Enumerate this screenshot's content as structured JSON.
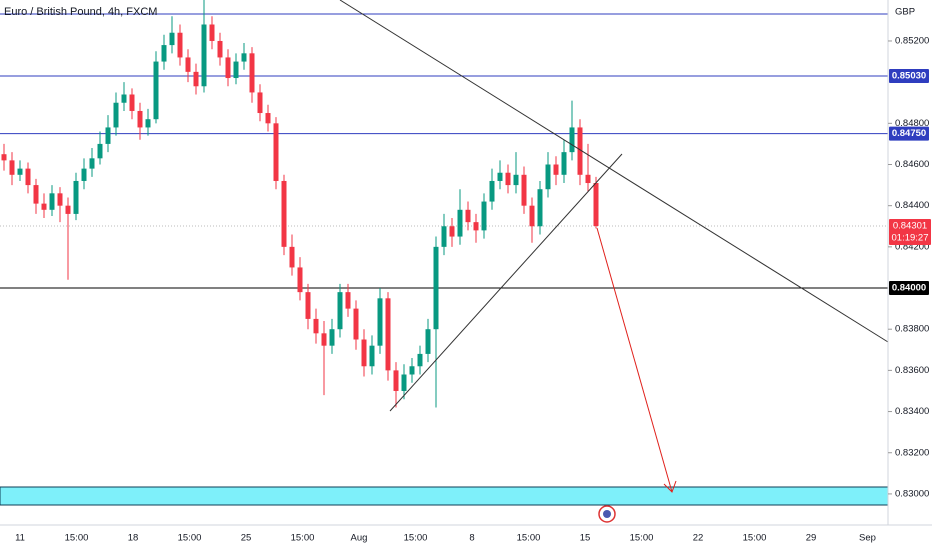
{
  "chart_data": {
    "type": "candlestick",
    "title": "Euro / British Pound, 4h, FXCM",
    "currency": "GBP",
    "up_color": "#089981",
    "down_color": "#f23645",
    "ylim": [
      0.82849,
      0.85399
    ],
    "yticks": [
      {
        "value": 0.852,
        "label": "0.85200"
      },
      {
        "value": 0.848,
        "label": "0.84800"
      },
      {
        "value": 0.846,
        "label": "0.84600"
      },
      {
        "value": 0.844,
        "label": "0.84400"
      },
      {
        "value": 0.842,
        "label": "0.84200"
      },
      {
        "value": 0.838,
        "label": "0.83800"
      },
      {
        "value": 0.836,
        "label": "0.83600"
      },
      {
        "value": 0.834,
        "label": "0.83400"
      },
      {
        "value": 0.832,
        "label": "0.83200"
      },
      {
        "value": 0.83,
        "label": "0.83000"
      }
    ],
    "levels": [
      {
        "value": 0.8503,
        "label": "0.85030",
        "color": "#2f3dbf"
      },
      {
        "value": 0.8475,
        "label": "0.84750",
        "color": "#2f3dbf"
      },
      {
        "value": 0.84,
        "label": "0.84000",
        "color": "#000000"
      }
    ],
    "last_price": {
      "value": 0.84301,
      "label": "0.84301",
      "countdown": "01:19:27",
      "color": "#f23645"
    },
    "xtick_labels": [
      "11",
      "15:00",
      "18",
      "15:00",
      "25",
      "15:00",
      "Aug",
      "15:00",
      "8",
      "15:00",
      "15",
      "15:00",
      "22",
      "15:00",
      "29",
      "Sep"
    ],
    "ohlc": [
      [
        0.8465,
        0.847,
        0.8457,
        0.8462
      ],
      [
        0.8462,
        0.8466,
        0.845,
        0.8455
      ],
      [
        0.8455,
        0.8462,
        0.8452,
        0.8458
      ],
      [
        0.8458,
        0.8461,
        0.8446,
        0.845
      ],
      [
        0.845,
        0.8453,
        0.8436,
        0.8441
      ],
      [
        0.8441,
        0.8446,
        0.8434,
        0.8438
      ],
      [
        0.8438,
        0.845,
        0.8435,
        0.8446
      ],
      [
        0.8446,
        0.8449,
        0.8432,
        0.844
      ],
      [
        0.844,
        0.8444,
        0.8404,
        0.8436
      ],
      [
        0.8436,
        0.8456,
        0.8433,
        0.8452
      ],
      [
        0.8452,
        0.8463,
        0.8448,
        0.8458
      ],
      [
        0.8458,
        0.8468,
        0.8454,
        0.8463
      ],
      [
        0.8463,
        0.8476,
        0.846,
        0.847
      ],
      [
        0.847,
        0.8484,
        0.8466,
        0.8478
      ],
      [
        0.8478,
        0.8495,
        0.8474,
        0.849
      ],
      [
        0.849,
        0.85,
        0.8486,
        0.8494
      ],
      [
        0.8494,
        0.8497,
        0.8482,
        0.8486
      ],
      [
        0.8486,
        0.849,
        0.8472,
        0.8478
      ],
      [
        0.8478,
        0.8487,
        0.8474,
        0.8482
      ],
      [
        0.8482,
        0.8515,
        0.848,
        0.851
      ],
      [
        0.851,
        0.8523,
        0.8506,
        0.8518
      ],
      [
        0.8518,
        0.8532,
        0.8514,
        0.8524
      ],
      [
        0.8524,
        0.8528,
        0.8508,
        0.8512
      ],
      [
        0.8512,
        0.8516,
        0.85,
        0.8505
      ],
      [
        0.8505,
        0.8509,
        0.8494,
        0.8498
      ],
      [
        0.8498,
        0.854,
        0.8495,
        0.8528
      ],
      [
        0.8528,
        0.8532,
        0.8516,
        0.852
      ],
      [
        0.852,
        0.8524,
        0.8508,
        0.8512
      ],
      [
        0.8512,
        0.8516,
        0.8498,
        0.8502
      ],
      [
        0.8502,
        0.8514,
        0.8499,
        0.851
      ],
      [
        0.851,
        0.8519,
        0.8506,
        0.8514
      ],
      [
        0.8514,
        0.8517,
        0.849,
        0.8495
      ],
      [
        0.8495,
        0.8499,
        0.8481,
        0.8485
      ],
      [
        0.8485,
        0.8489,
        0.8476,
        0.848
      ],
      [
        0.848,
        0.8483,
        0.8448,
        0.8452
      ],
      [
        0.8452,
        0.8455,
        0.8416,
        0.842
      ],
      [
        0.842,
        0.8426,
        0.8406,
        0.841
      ],
      [
        0.841,
        0.8415,
        0.8394,
        0.8398
      ],
      [
        0.8398,
        0.8402,
        0.838,
        0.8385
      ],
      [
        0.8385,
        0.839,
        0.8373,
        0.8378
      ],
      [
        0.8378,
        0.8384,
        0.8348,
        0.8372
      ],
      [
        0.8372,
        0.8385,
        0.8368,
        0.838
      ],
      [
        0.838,
        0.8402,
        0.8376,
        0.8398
      ],
      [
        0.8398,
        0.8402,
        0.8386,
        0.839
      ],
      [
        0.839,
        0.8394,
        0.837,
        0.8375
      ],
      [
        0.8375,
        0.838,
        0.8357,
        0.8362
      ],
      [
        0.8362,
        0.8377,
        0.8358,
        0.8372
      ],
      [
        0.8372,
        0.84,
        0.8368,
        0.8395
      ],
      [
        0.8395,
        0.8398,
        0.8355,
        0.836
      ],
      [
        0.836,
        0.8364,
        0.8342,
        0.835
      ],
      [
        0.835,
        0.8363,
        0.8346,
        0.8358
      ],
      [
        0.8358,
        0.8366,
        0.8354,
        0.8362
      ],
      [
        0.8362,
        0.8372,
        0.8358,
        0.8368
      ],
      [
        0.8368,
        0.8385,
        0.8364,
        0.838
      ],
      [
        0.838,
        0.8425,
        0.8342,
        0.842
      ],
      [
        0.842,
        0.8436,
        0.8416,
        0.843
      ],
      [
        0.843,
        0.8434,
        0.842,
        0.8425
      ],
      [
        0.8425,
        0.8448,
        0.8421,
        0.8438
      ],
      [
        0.8438,
        0.8442,
        0.8428,
        0.8432
      ],
      [
        0.8432,
        0.8436,
        0.8422,
        0.8428
      ],
      [
        0.8428,
        0.8446,
        0.8424,
        0.8442
      ],
      [
        0.8442,
        0.8458,
        0.8438,
        0.8452
      ],
      [
        0.8452,
        0.8462,
        0.8448,
        0.8456
      ],
      [
        0.8456,
        0.846,
        0.8446,
        0.845
      ],
      [
        0.845,
        0.8466,
        0.8446,
        0.8455
      ],
      [
        0.8455,
        0.8459,
        0.8436,
        0.844
      ],
      [
        0.844,
        0.8444,
        0.8422,
        0.843
      ],
      [
        0.843,
        0.8452,
        0.8426,
        0.8448
      ],
      [
        0.8448,
        0.8466,
        0.8444,
        0.846
      ],
      [
        0.846,
        0.8464,
        0.845,
        0.8455
      ],
      [
        0.8455,
        0.8472,
        0.8451,
        0.8466
      ],
      [
        0.8466,
        0.8491,
        0.8462,
        0.8478
      ],
      [
        0.8478,
        0.8482,
        0.845,
        0.8455
      ],
      [
        0.8455,
        0.847,
        0.8447,
        0.8451
      ],
      [
        0.8451,
        0.8454,
        0.8429,
        0.84301
      ]
    ]
  }
}
